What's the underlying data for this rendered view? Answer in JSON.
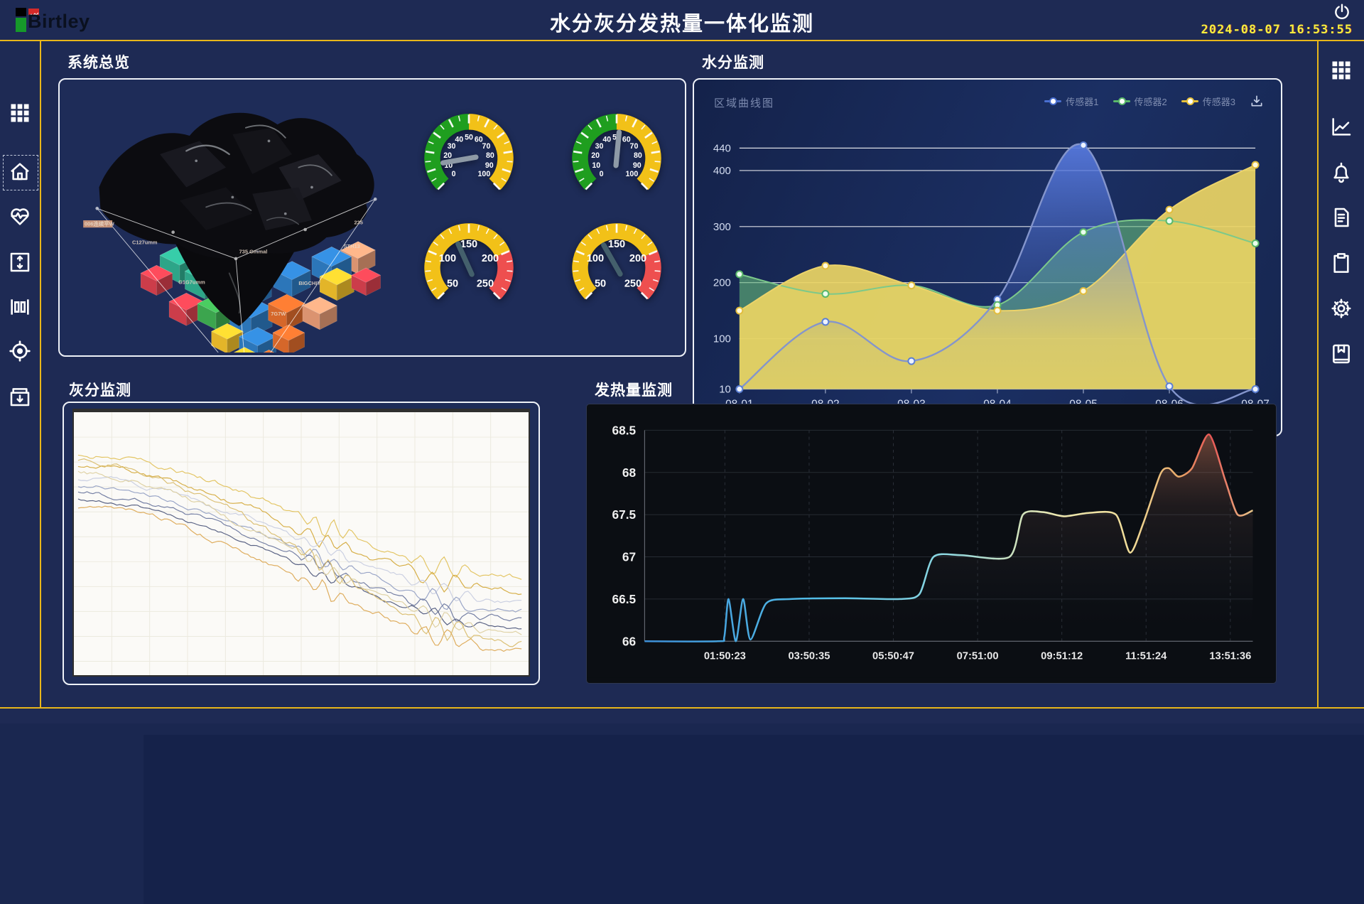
{
  "header": {
    "logo_text": "Birtley",
    "title": "水分灰分发热量一体化监测",
    "date": "2024-08-07",
    "time": "16:53:55"
  },
  "sidebar_left": {
    "items": [
      {
        "id": "apps",
        "icon": "grid-icon"
      },
      {
        "id": "home",
        "icon": "home-icon",
        "active": true
      },
      {
        "id": "health",
        "icon": "heart-pulse-icon"
      },
      {
        "id": "level",
        "icon": "box-arrows-icon"
      },
      {
        "id": "measure",
        "icon": "ruler-icon"
      },
      {
        "id": "target",
        "icon": "target-icon"
      },
      {
        "id": "archive",
        "icon": "box-down-icon"
      }
    ]
  },
  "sidebar_right": {
    "items": [
      {
        "id": "apps",
        "icon": "grid-icon"
      },
      {
        "id": "trend",
        "icon": "line-chart-icon"
      },
      {
        "id": "alerts",
        "icon": "bell-icon"
      },
      {
        "id": "report",
        "icon": "document-icon"
      },
      {
        "id": "tasks",
        "icon": "clipboard-icon"
      },
      {
        "id": "settings",
        "icon": "gear-icon"
      },
      {
        "id": "save",
        "icon": "book-icon"
      }
    ]
  },
  "panels": {
    "overview": {
      "title": "系统总览"
    },
    "moisture": {
      "title": "水分监测",
      "chart_label": "区域曲线图",
      "legend": [
        {
          "label": "传感器1",
          "color": "#4a6fd0"
        },
        {
          "label": "传感器2",
          "color": "#5ab86a"
        },
        {
          "label": "传感器3",
          "color": "#e8c23a"
        }
      ]
    },
    "ash": {
      "title": "灰分监测"
    },
    "calorific": {
      "title": "发热量监测"
    }
  },
  "overview_3d": {
    "decorative_labels": [
      "006连续平W",
      "C127umm",
      "G1G7umm",
      "735 Gmmal",
      "BIGCHIY",
      "STH13",
      "235",
      "7G7W"
    ]
  },
  "chart_data": [
    {
      "id": "moisture",
      "type": "area",
      "title": "区域曲线图",
      "categories": [
        "08-01",
        "08-02",
        "08-03",
        "08-04",
        "08-05",
        "08-06",
        "08-07"
      ],
      "series": [
        {
          "name": "传感器1",
          "color": "#5b7fd4",
          "values": [
            10,
            130,
            60,
            170,
            445,
            15,
            10
          ]
        },
        {
          "name": "传感器2",
          "color": "#5ab86a",
          "values": [
            215,
            180,
            195,
            160,
            290,
            310,
            270
          ]
        },
        {
          "name": "传感器3",
          "color": "#e8c23a",
          "values": [
            150,
            230,
            195,
            150,
            185,
            330,
            410
          ]
        }
      ],
      "yticks": [
        10,
        100,
        200,
        300,
        400,
        440
      ],
      "ylim": [
        10,
        460
      ],
      "grid": true,
      "legend_position": "top-right"
    },
    {
      "id": "ash",
      "type": "line",
      "background": "#ffffff",
      "note": "noisy descending trend lines",
      "series": [
        {
          "color": "#e2c25c",
          "y_start": 62,
          "y_end": 238,
          "amp": 7
        },
        {
          "color": "#d4aa3c",
          "y_start": 78,
          "y_end": 258,
          "amp": 6
        },
        {
          "color": "#c8cde0",
          "y_start": 96,
          "y_end": 272,
          "amp": 5
        },
        {
          "color": "#93a0c4",
          "y_start": 108,
          "y_end": 288,
          "amp": 5
        },
        {
          "color": "#6b779e",
          "y_start": 118,
          "y_end": 300,
          "amp": 5
        },
        {
          "color": "#4f587c",
          "y_start": 128,
          "y_end": 312,
          "amp": 4
        },
        {
          "color": "#ddd0a0",
          "y_start": 88,
          "y_end": 322,
          "amp": 6
        },
        {
          "color": "#d9bd6e",
          "y_start": 70,
          "y_end": 334,
          "amp": 7
        },
        {
          "color": "#dca853",
          "y_start": 135,
          "y_end": 345,
          "amp": 6
        }
      ]
    },
    {
      "id": "calorific",
      "type": "line",
      "x_labels": [
        "01:50:23",
        "03:50:35",
        "05:50:47",
        "07:51:00",
        "09:51:12",
        "11:51:24",
        "13:51:36"
      ],
      "yticks": [
        66,
        66.5,
        67,
        67.5,
        68,
        68.5
      ],
      "ylim": [
        66,
        68.5
      ],
      "points": [
        [
          0,
          66
        ],
        [
          0.12,
          66
        ],
        [
          0.131,
          66.05
        ],
        [
          0.138,
          66.5
        ],
        [
          0.15,
          66.0
        ],
        [
          0.162,
          66.5
        ],
        [
          0.174,
          66.02
        ],
        [
          0.2,
          66.45
        ],
        [
          0.24,
          66.5
        ],
        [
          0.33,
          66.51
        ],
        [
          0.42,
          66.5
        ],
        [
          0.452,
          66.56
        ],
        [
          0.475,
          67.0
        ],
        [
          0.52,
          67.02
        ],
        [
          0.6,
          67.0
        ],
        [
          0.622,
          67.5
        ],
        [
          0.655,
          67.53
        ],
        [
          0.69,
          67.48
        ],
        [
          0.73,
          67.52
        ],
        [
          0.775,
          67.5
        ],
        [
          0.798,
          67.05
        ],
        [
          0.82,
          67.4
        ],
        [
          0.848,
          67.98
        ],
        [
          0.862,
          68.05
        ],
        [
          0.878,
          67.95
        ],
        [
          0.9,
          68.05
        ],
        [
          0.928,
          68.45
        ],
        [
          0.955,
          67.9
        ],
        [
          0.975,
          67.5
        ],
        [
          1,
          67.55
        ]
      ]
    },
    {
      "id": "gauges",
      "type": "gauge",
      "items": [
        {
          "min": 0,
          "max": 100,
          "value": 13,
          "major_step": 10,
          "minor_step": 5,
          "needle_color": "#8e9aa6",
          "segments": [
            {
              "to": 50,
              "color": "#1f9e1f"
            },
            {
              "to": 100,
              "color": "#f2c118"
            }
          ]
        },
        {
          "min": 0,
          "max": 100,
          "value": 52,
          "major_step": 10,
          "minor_step": 5,
          "needle_color": "#8e9aa6",
          "segments": [
            {
              "to": 50,
              "color": "#1f9e1f"
            },
            {
              "to": 100,
              "color": "#f2c118"
            }
          ]
        },
        {
          "min": 50,
          "max": 250,
          "value": 132,
          "major_step": 50,
          "minor_step": 10,
          "needle_color": "#44606c",
          "segments": [
            {
              "to": 200,
              "color": "#f2c118"
            },
            {
              "to": 250,
              "color": "#ee4f4f"
            }
          ]
        },
        {
          "min": 50,
          "max": 250,
          "value": 128,
          "major_step": 50,
          "minor_step": 10,
          "needle_color": "#44606c",
          "segments": [
            {
              "to": 200,
              "color": "#f2c118"
            },
            {
              "to": 250,
              "color": "#ee4f4f"
            }
          ]
        }
      ]
    }
  ],
  "colors": {
    "background": "#1e2a54",
    "accent_gold": "#e8b61a",
    "clock": "#f4ef3d",
    "panel_border": "#eef1f7"
  }
}
